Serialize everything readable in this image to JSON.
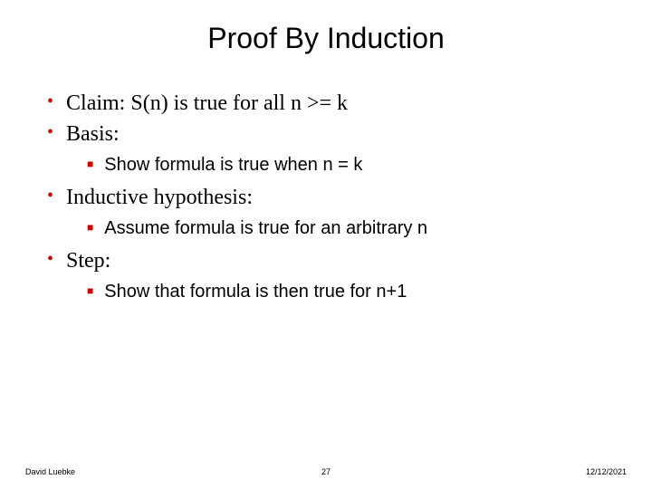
{
  "title": "Proof By Induction",
  "bullets": {
    "b1": "Claim: S(n) is true for all n >= k",
    "b2": "Basis:",
    "b2s1": "Show formula is true when n = k",
    "b3": "Inductive hypothesis:",
    "b3s1": "Assume formula is true for an arbitrary n",
    "b4": "Step:",
    "b4s1": "Show that formula is then true for n+1"
  },
  "footer": {
    "author": "David Luebke",
    "page": "27",
    "date": "12/12/2021"
  },
  "colors": {
    "bullet_accent": "#cc0000",
    "text": "#000000",
    "background": "#ffffff"
  },
  "typography": {
    "title_font": "Arial",
    "title_size_pt": 32,
    "body_font": "Times New Roman",
    "body_l1_size_pt": 24,
    "body_l2_font": "Arial",
    "body_l2_size_pt": 20,
    "footer_size_pt": 9
  }
}
